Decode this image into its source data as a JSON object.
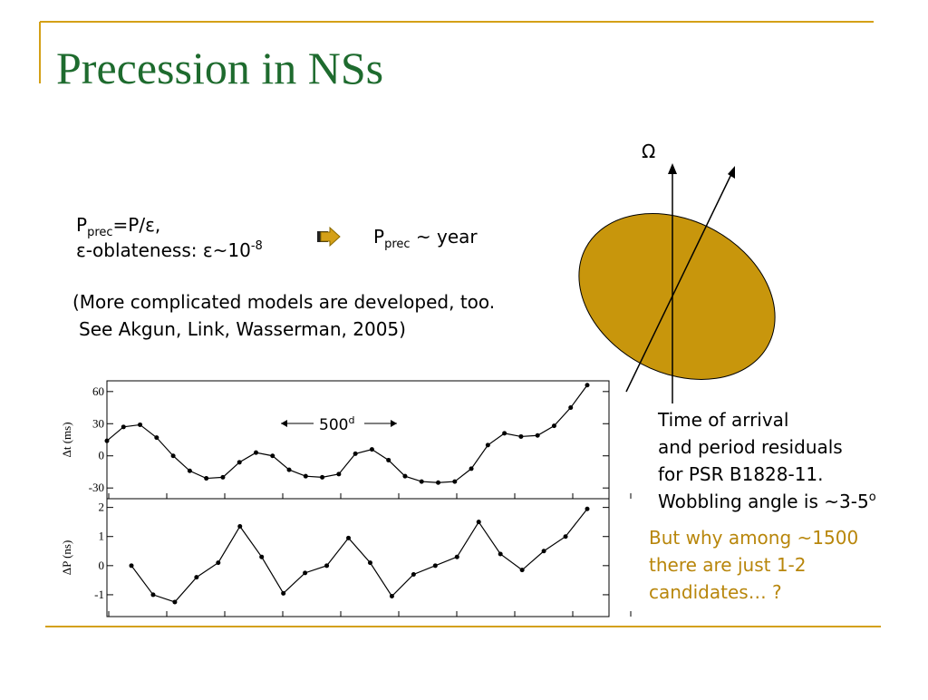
{
  "title": "Precession in NSs",
  "formula": {
    "line1": [
      "P",
      "prec",
      "=P/ε,"
    ],
    "line2": [
      "ε-oblateness: ε~10",
      "-8"
    ]
  },
  "result": [
    "P",
    "prec",
    " ~ year"
  ],
  "note": [
    "(More complicated models are developed, too.",
    "See Akgun, Link, Wasserman, 2005)"
  ],
  "omega": "Ω",
  "period": [
    "500",
    "d"
  ],
  "caption": [
    "Time of arrival",
    "and period residuals",
    "for PSR B1828-11.",
    "Wobbling angle is ~3-5",
    "o"
  ],
  "question": [
    "But why among ~1500",
    "there are just 1-2",
    "candidates… ?"
  ],
  "chart_data": [
    {
      "type": "line",
      "ylabel": "Δt (ms)",
      "values": [
        14,
        27,
        29,
        17,
        0,
        -14,
        -21,
        -20,
        -6,
        3,
        0,
        -13,
        -19,
        -20,
        -17,
        2,
        6,
        -4,
        -19,
        -24,
        -25,
        -24,
        -12,
        10,
        21,
        18,
        19,
        28,
        45,
        66
      ],
      "ylim": [
        -40,
        70
      ],
      "yticks": [
        60,
        30,
        0,
        -30
      ],
      "color": "#000000"
    },
    {
      "type": "line",
      "ylabel": "ΔP (ns)",
      "values": [
        0,
        -1.0,
        -1.25,
        -0.4,
        0.1,
        1.35,
        0.3,
        -0.95,
        -0.25,
        0,
        0.95,
        0.1,
        -1.05,
        -0.3,
        0,
        0.3,
        1.5,
        0.4,
        -0.15,
        0.5,
        1.0,
        1.95
      ],
      "ylim": [
        -1.75,
        2.3
      ],
      "yticks": [
        2,
        1,
        0,
        -1
      ],
      "color": "#000000"
    }
  ]
}
